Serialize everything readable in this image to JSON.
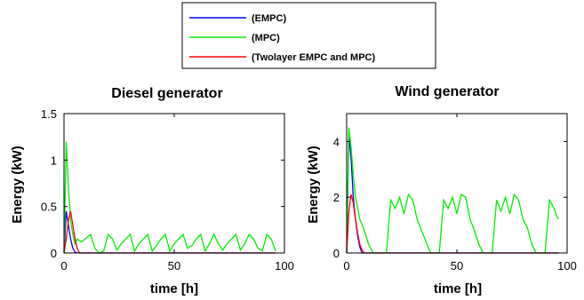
{
  "legend": {
    "entries": [
      {
        "label": "(EMPC)",
        "color": "#0000ff"
      },
      {
        "label": "(MPC)",
        "color": "#00ee00"
      },
      {
        "label": "(Twolayer EMPC and MPC)",
        "color": "#ff0000"
      }
    ]
  },
  "chart_data": [
    {
      "type": "line",
      "title": "Diesel generator",
      "xlabel": "time [h]",
      "ylabel": "Energy (kW)",
      "xlim": [
        0,
        100
      ],
      "ylim": [
        0,
        1.5
      ],
      "xticks": [
        0,
        50,
        100
      ],
      "xtick_labels": [
        "0",
        "50",
        "100"
      ],
      "yticks": [
        0,
        0.5,
        1,
        1.5
      ],
      "ytick_labels": [
        "0",
        "0.5",
        "1",
        "1.5"
      ],
      "grid": false,
      "series": [
        {
          "name": "(EMPC)",
          "color": "#0000ff",
          "x": [
            0,
            1,
            2,
            3,
            4,
            5,
            6,
            96
          ],
          "y": [
            0,
            0.45,
            0.3,
            0.15,
            0.05,
            0.01,
            0,
            0
          ]
        },
        {
          "name": "(MPC)",
          "color": "#00ee00",
          "x": [
            0,
            1,
            2,
            3,
            4,
            5,
            6,
            8,
            10,
            12,
            14,
            16,
            18,
            20,
            22,
            24,
            26,
            28,
            30,
            32,
            34,
            36,
            38,
            40,
            42,
            44,
            46,
            48,
            50,
            52,
            54,
            56,
            58,
            60,
            62,
            64,
            66,
            68,
            70,
            72,
            74,
            76,
            78,
            80,
            82,
            84,
            86,
            88,
            90,
            92,
            94,
            96
          ],
          "y": [
            0,
            1.2,
            0.7,
            0.35,
            0.2,
            0.1,
            0.15,
            0.12,
            0.16,
            0.2,
            0.05,
            0.0,
            0.02,
            0.2,
            0.15,
            0.03,
            0.1,
            0.15,
            0.2,
            0.02,
            0.1,
            0.15,
            0.2,
            0.02,
            0.08,
            0.15,
            0.2,
            0.02,
            0.1,
            0.15,
            0.2,
            0.05,
            0.08,
            0.15,
            0.2,
            0.02,
            0.1,
            0.2,
            0.1,
            0.03,
            0.1,
            0.15,
            0.2,
            0.03,
            0.1,
            0.2,
            0.15,
            0.05,
            0.02,
            0.2,
            0.15,
            0.02
          ]
        },
        {
          "name": "(Twolayer EMPC and MPC)",
          "color": "#ff0000",
          "x": [
            0,
            1,
            2,
            3,
            4,
            5,
            6,
            7,
            96
          ],
          "y": [
            0,
            0.15,
            0.35,
            0.45,
            0.3,
            0.15,
            0.05,
            0,
            0
          ]
        }
      ]
    },
    {
      "type": "line",
      "title": "Wind generator",
      "xlabel": "time [h]",
      "ylabel": "Energy (kW)",
      "xlim": [
        0,
        100
      ],
      "ylim": [
        0,
        5
      ],
      "xticks": [
        0,
        50,
        100
      ],
      "xtick_labels": [
        "0",
        "50",
        "100"
      ],
      "yticks": [
        0,
        2,
        4
      ],
      "ytick_labels": [
        "0",
        "2",
        "4"
      ],
      "grid": false,
      "series": [
        {
          "name": "(EMPC)",
          "color": "#0000ff",
          "x": [
            0,
            1,
            2,
            3,
            4,
            5,
            6,
            7,
            96
          ],
          "y": [
            0,
            4.2,
            3.4,
            2.0,
            1.2,
            0.6,
            0.2,
            0,
            0
          ]
        },
        {
          "name": "(MPC)",
          "color": "#00ee00",
          "x": [
            0,
            1,
            2,
            3,
            4,
            5,
            6,
            8,
            10,
            12,
            14,
            16,
            18,
            20,
            22,
            24,
            26,
            28,
            30,
            32,
            34,
            36,
            38,
            40,
            42,
            44,
            46,
            48,
            50,
            52,
            54,
            56,
            58,
            60,
            62,
            64,
            66,
            68,
            70,
            72,
            74,
            76,
            78,
            80,
            82,
            84,
            86,
            88,
            90,
            92,
            94,
            96
          ],
          "y": [
            0,
            4.5,
            3.8,
            2.8,
            2.0,
            1.6,
            1.2,
            0.8,
            0.3,
            0.0,
            0.0,
            0.0,
            0.0,
            1.9,
            1.6,
            2.0,
            1.4,
            2.1,
            1.9,
            1.2,
            0.8,
            0.4,
            0.0,
            0.0,
            0.0,
            1.9,
            1.6,
            2.0,
            1.4,
            2.1,
            2.0,
            1.2,
            0.8,
            0.3,
            0.0,
            0.0,
            0.0,
            1.9,
            1.5,
            2.0,
            1.4,
            2.1,
            1.9,
            1.2,
            0.9,
            0.3,
            0.0,
            0.0,
            0.0,
            1.9,
            1.6,
            1.2
          ]
        },
        {
          "name": "(Twolayer EMPC and MPC)",
          "color": "#ff0000",
          "x": [
            0,
            1,
            2,
            3,
            4,
            5,
            6,
            7,
            8,
            96
          ],
          "y": [
            0,
            1.5,
            2.1,
            1.8,
            1.2,
            0.7,
            0.3,
            0.1,
            0,
            0
          ]
        }
      ]
    }
  ]
}
